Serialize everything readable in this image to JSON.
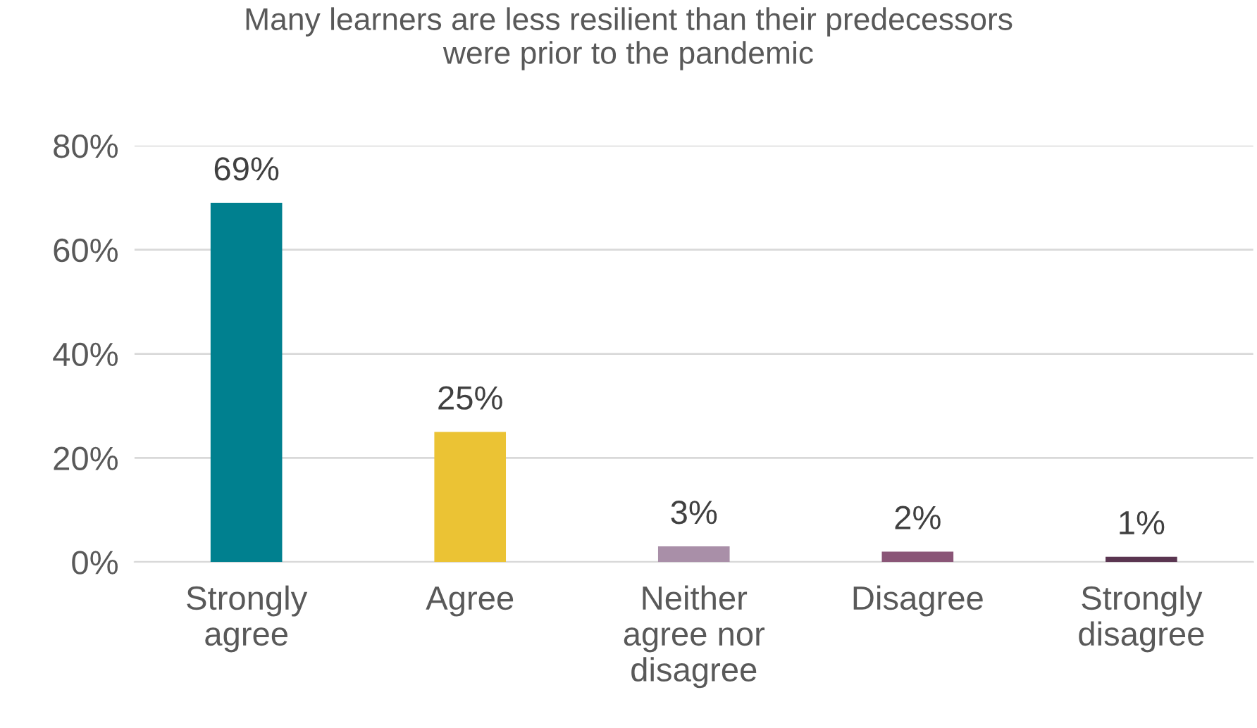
{
  "chart_data": {
    "type": "bar",
    "title": "Many learners are less resilient than their predecessors\nwere prior to the pandemic",
    "categories": [
      "Strongly\nagree",
      "Agree",
      "Neither\nagree nor\ndisagree",
      "Disagree",
      "Strongly\ndisagree"
    ],
    "values": [
      69,
      25,
      3,
      2,
      1
    ],
    "colors": [
      "#00808f",
      "#ebc334",
      "#a98fa8",
      "#8a5577",
      "#5a3550"
    ],
    "value_labels": [
      "69%",
      "25%",
      "3%",
      "2%",
      "1%"
    ],
    "ylim": [
      0,
      80
    ],
    "yticks": [
      {
        "value": 0,
        "label": "0%"
      },
      {
        "value": 20,
        "label": "20%"
      },
      {
        "value": 40,
        "label": "40%"
      },
      {
        "value": 60,
        "label": "60%"
      },
      {
        "value": 80,
        "label": "80%"
      }
    ],
    "grid": "y",
    "legend": false
  }
}
